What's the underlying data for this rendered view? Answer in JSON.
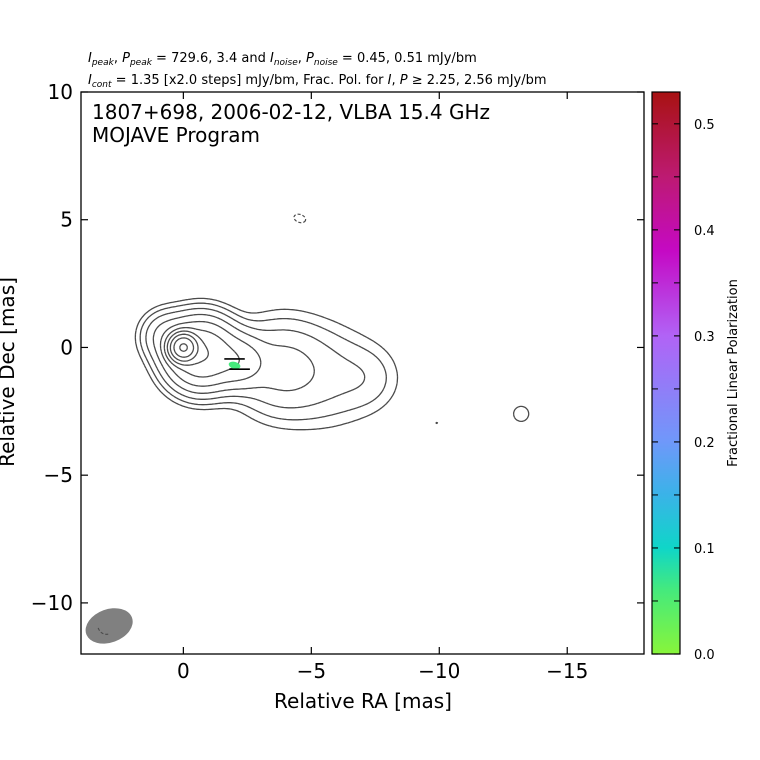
{
  "header": {
    "line1": {
      "i_peak_sym": "I",
      "i_peak_sub": "peak",
      "p_peak_sym": "P",
      "p_peak_sub": "peak",
      "peak_values": " = 729.6, 3.4 and ",
      "i_noise_sym": "I",
      "i_noise_sub": "noise",
      "p_noise_sym": "P",
      "p_noise_sub": "noise",
      "noise_values": " = 0.45, 0.51 mJy/bm"
    },
    "line2": {
      "i_cont_sym": "I",
      "i_cont_sub": "cont",
      "cont_text": " = 1.35 [x2.0 steps] mJy/bm, Frac. Pol. for ",
      "i_sym": "I",
      "p_sym": "P",
      "thresh_text": " ≥ 2.25, 2.56 mJy/bm"
    }
  },
  "chart_data": {
    "type": "contour",
    "annotation_line1": "1807+698, 2006-02-12, VLBA 15.4 GHz",
    "annotation_line2": "MOJAVE Program",
    "xlabel": "Relative RA [mas]",
    "ylabel": "Relative Dec [mas]",
    "xlim": [
      4,
      -18
    ],
    "ylim": [
      -12,
      10
    ],
    "x_ticks": [
      0,
      -5,
      -10,
      -15
    ],
    "x_tick_labels": [
      "0",
      "−5",
      "−10",
      "−15"
    ],
    "y_ticks": [
      10,
      5,
      0,
      -5,
      -10
    ],
    "y_tick_labels": [
      "10",
      "5",
      "0",
      "−5",
      "−10"
    ],
    "contour_color": "#4a4a4a",
    "colorbar": {
      "label": "Fractional Linear Polarization",
      "range": [
        0.0,
        0.53
      ],
      "ticks": [
        0.0,
        0.1,
        0.2,
        0.3,
        0.4,
        0.5
      ],
      "tick_labels": [
        "0.0",
        "0.1",
        "0.2",
        "0.3",
        "0.4",
        "0.5"
      ],
      "minor_ticks": [
        0.05,
        0.15,
        0.25,
        0.35,
        0.45
      ],
      "colors": [
        {
          "v": 0.0,
          "c": "#88f53a"
        },
        {
          "v": 0.06,
          "c": "#45ea7c"
        },
        {
          "v": 0.1,
          "c": "#0fd6c8"
        },
        {
          "v": 0.15,
          "c": "#3ab3e8"
        },
        {
          "v": 0.2,
          "c": "#6f98fa"
        },
        {
          "v": 0.3,
          "c": "#b163f6"
        },
        {
          "v": 0.38,
          "c": "#c509c4"
        },
        {
          "v": 0.45,
          "c": "#bd1a72"
        },
        {
          "v": 0.53,
          "c": "#a81212"
        }
      ]
    },
    "polarization_patch": {
      "x": -2.0,
      "y": -0.7,
      "fraction": 0.08
    },
    "evpa_ticks": [
      {
        "x": -2.0,
        "y": -0.45,
        "len": 0.8
      },
      {
        "x": -2.2,
        "y": -0.85,
        "len": 0.8
      }
    ],
    "beam": {
      "x": 2.9,
      "y": -10.9,
      "major": 0.95,
      "minor": 0.65,
      "pa_deg": -20
    }
  }
}
